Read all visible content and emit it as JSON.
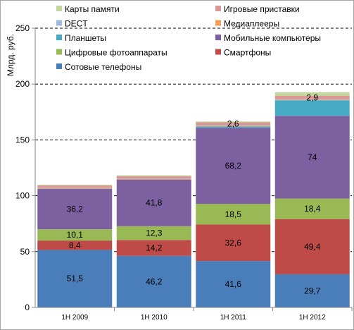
{
  "chart_data": {
    "type": "bar",
    "stacked": true,
    "ylabel": "Млрд. руб.",
    "ylim": [
      0,
      250
    ],
    "yticks": [
      0,
      50,
      100,
      150,
      200,
      250
    ],
    "grid": "horizontal-dashed",
    "categories": [
      "1H 2009",
      "1H 2010",
      "1H 2011",
      "1H 2012"
    ],
    "series": [
      {
        "name": "Сотовые телефоны",
        "color": "#4a7ebb",
        "values": [
          51.5,
          46.2,
          41.6,
          29.7
        ],
        "labels": [
          "51,5",
          "46,2",
          "41,6",
          "29,7"
        ]
      },
      {
        "name": "Смартфоны",
        "color": "#be4b48",
        "values": [
          8.4,
          14.2,
          32.6,
          49.4
        ],
        "labels": [
          "8,4",
          "14,2",
          "32,6",
          "49,4"
        ]
      },
      {
        "name": "Цифровые фотоаппараты",
        "color": "#98b954",
        "values": [
          10.1,
          12.3,
          18.5,
          18.4
        ],
        "labels": [
          "10,1",
          "12,3",
          "18,5",
          "18,4"
        ]
      },
      {
        "name": "Мобильные компьютеры",
        "color": "#7d60a0",
        "values": [
          36.2,
          41.8,
          68.2,
          74
        ],
        "labels": [
          "36,2",
          "41,8",
          "68,2",
          "74"
        ]
      },
      {
        "name": "Планшеты",
        "color": "#46aac5",
        "values": [
          0,
          0,
          1.2,
          14
        ],
        "labels": [
          "",
          "",
          "",
          ""
        ]
      },
      {
        "name": "Медиаплееры",
        "color": "#f59d56",
        "values": [
          0.6,
          0.6,
          0.6,
          0.6
        ],
        "labels": [
          "",
          "",
          "",
          ""
        ]
      },
      {
        "name": "DECT",
        "color": "#9db9e0",
        "values": [
          0.4,
          0.4,
          0.4,
          0.4
        ],
        "labels": [
          "",
          "",
          "",
          ""
        ]
      },
      {
        "name": "Игровые приставки",
        "color": "#d99795",
        "values": [
          2.0,
          2.0,
          2.6,
          2.9
        ],
        "labels": [
          "",
          "",
          "2,6",
          "2,9"
        ]
      },
      {
        "name": "Карты памяти",
        "color": "#c3d69b",
        "values": [
          0.6,
          0.8,
          0.8,
          3.2
        ],
        "labels": [
          "",
          "",
          "",
          ""
        ]
      }
    ],
    "legend": {
      "placement": "top",
      "columns": [
        [
          "Карты памяти",
          "DECT",
          "Планшеты",
          "Цифровые фотоаппараты",
          "Сотовые телефоны"
        ],
        [
          "Игровые приставки",
          "Медиаплееры",
          "Мобильные компьютеры",
          "Смартфоны"
        ]
      ]
    }
  }
}
